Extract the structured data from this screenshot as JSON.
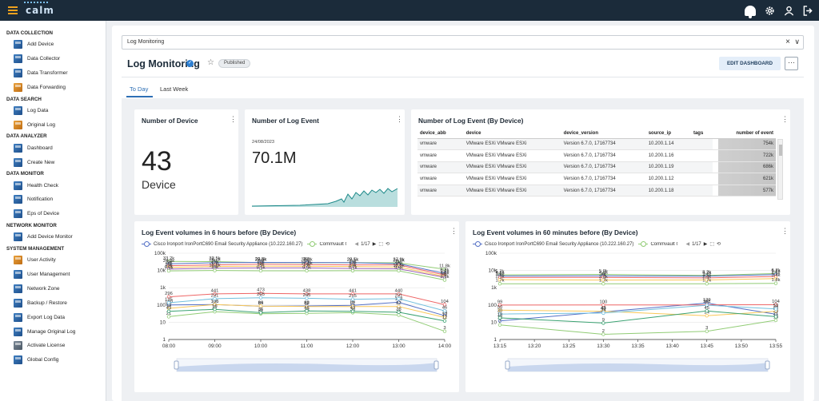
{
  "app": {
    "logo": "calm"
  },
  "sidebar": {
    "sections": [
      {
        "title": "DATA COLLECTION",
        "items": [
          {
            "label": "Add Device",
            "icon": "add-device-icon",
            "c": "b"
          },
          {
            "label": "Data Collector",
            "icon": "data-collector-icon",
            "c": "b"
          },
          {
            "label": "Data Transformer",
            "icon": "data-transformer-icon",
            "c": "b"
          },
          {
            "label": "Data Forwarding",
            "icon": "data-forwarding-icon",
            "c": "o"
          }
        ]
      },
      {
        "title": "DATA SEARCH",
        "items": [
          {
            "label": "Log Data",
            "icon": "log-data-icon",
            "c": "b"
          },
          {
            "label": "Original Log",
            "icon": "original-log-icon",
            "c": "o"
          }
        ]
      },
      {
        "title": "DATA ANALYZER",
        "items": [
          {
            "label": "Dashboard",
            "icon": "dashboard-icon",
            "c": "b"
          },
          {
            "label": "Create New",
            "icon": "create-new-icon",
            "c": "b"
          }
        ]
      },
      {
        "title": "DATA MONITOR",
        "items": [
          {
            "label": "Health Check",
            "icon": "health-check-icon",
            "c": "b"
          },
          {
            "label": "Notification",
            "icon": "notification-icon",
            "c": "b"
          },
          {
            "label": "Eps of Device",
            "icon": "eps-device-icon",
            "c": "b"
          }
        ]
      },
      {
        "title": "NETWORK MONITOR",
        "items": [
          {
            "label": "Add Device Monitor",
            "icon": "add-device-monitor-icon",
            "c": "b"
          }
        ]
      },
      {
        "title": "SYSTEM MANAGEMENT",
        "items": [
          {
            "label": "User Activity",
            "icon": "user-activity-icon",
            "c": "o"
          },
          {
            "label": "User Management",
            "icon": "user-management-icon",
            "c": "b"
          },
          {
            "label": "Network Zone",
            "icon": "network-zone-icon",
            "c": "b"
          },
          {
            "label": "Backup / Restore",
            "icon": "backup-restore-icon",
            "c": "b"
          },
          {
            "label": "Export Log Data",
            "icon": "export-log-icon",
            "c": "b"
          },
          {
            "label": "Manage Original Log",
            "icon": "manage-original-log-icon",
            "c": "b"
          },
          {
            "label": "Activate License",
            "icon": "activate-license-icon",
            "c": "g"
          },
          {
            "label": "Global Config",
            "icon": "global-config-icon",
            "c": "b"
          }
        ]
      }
    ]
  },
  "search": {
    "value": "Log Monitoring",
    "clear": "×",
    "toggle": "∨"
  },
  "header": {
    "title": "Log Monitoring",
    "badge": "Published",
    "edit": "EDIT DASHBOARD",
    "more": "···"
  },
  "tabs": [
    {
      "label": "To Day",
      "active": true
    },
    {
      "label": "Last Week",
      "active": false
    }
  ],
  "cards": {
    "devices": {
      "title": "Number of Device",
      "value": "43",
      "unit": "Device"
    },
    "events": {
      "title": "Number of Log Event",
      "date": "24/08/2023",
      "value": "70.1M"
    },
    "table": {
      "title": "Number of Log Event (By Device)",
      "columns": [
        "device_abb",
        "device",
        "device_version",
        "source_ip",
        "tags",
        "number of event"
      ],
      "rows": [
        [
          "vmware",
          "VMware ESXi VMware ESXi",
          "Version 6.7.0, 17167734",
          "10.200.1.14",
          "",
          "754k"
        ],
        [
          "vmware",
          "VMware ESXi VMware ESXi",
          "Version 6.7.0, 17167734",
          "10.200.1.16",
          "",
          "722k"
        ],
        [
          "vmware",
          "VMware ESXi VMware ESXi",
          "Version 6.7.0, 17167734",
          "10.200.1.19",
          "",
          "686k"
        ],
        [
          "vmware",
          "VMware ESXi VMware ESXi",
          "Version 6.7.0, 17167734",
          "10.200.1.12",
          "",
          "621k"
        ],
        [
          "vmware",
          "VMware ESXi VMware ESXi",
          "Version 6.7.0, 17167734",
          "10.200.1.18",
          "",
          "577k"
        ]
      ]
    }
  },
  "colors": {
    "blue": "#5470c6",
    "green": "#91cc75",
    "orange": "#fac858",
    "red": "#ee6666",
    "teal": "#1f8a8a"
  },
  "chart_data": [
    {
      "type": "line",
      "title": "Log Event volumes in 6 hours before (By Device)",
      "legend": [
        "Cisco Ironport IronPortC690 Email Security Appliance (10.222.160.27)",
        "Commvault Commvault"
      ],
      "pager": "1/17",
      "scale": "log",
      "ylim": [
        1,
        100000
      ],
      "yticks": [
        "1",
        "10",
        "100",
        "1k",
        "10k",
        "100k"
      ],
      "x": [
        "08:00",
        "09:00",
        "10:00",
        "11:00",
        "12:00",
        "13:00",
        "14:00"
      ],
      "series": [
        {
          "color": "#5470c6",
          "values": [
            100,
            105,
            84,
            88,
            96,
            143,
            24
          ]
        },
        {
          "color": "#91cc75",
          "values": [
            21,
            41,
            31,
            33,
            36,
            26,
            3
          ]
        },
        {
          "color": "#ee6666",
          "values": [
            296,
            441,
            473,
            438,
            441,
            440,
            104
          ]
        },
        {
          "color": "#fac858",
          "values": [
            64,
            106,
            86,
            82,
            81,
            82,
            19
          ]
        },
        {
          "color": "#73c0de",
          "values": [
            135,
            231,
            265,
            245,
            215,
            231,
            46
          ]
        },
        {
          "color": "#3ba272",
          "values": [
            43,
            56,
            36,
            45,
            43,
            38,
            12
          ]
        },
        {
          "color": "#91cc75",
          "values": [
            33200,
            32500,
            28400,
            28200,
            28500,
            27900,
            11800
          ]
        },
        {
          "color": "#5470c6",
          "values": [
            24300,
            28200,
            29500,
            29000,
            28100,
            24700,
            6840
          ]
        },
        {
          "color": "#ee6666",
          "values": [
            19000,
            21000,
            23000,
            22000,
            21000,
            21000,
            5500
          ]
        },
        {
          "color": "#fac858",
          "values": [
            15000,
            17000,
            18000,
            17500,
            17000,
            16000,
            4500
          ]
        },
        {
          "color": "#9a60b4",
          "values": [
            12000,
            13500,
            14000,
            14000,
            13000,
            12500,
            4000
          ]
        },
        {
          "color": "#91cc75",
          "values": [
            9500,
            10000,
            9600,
            9600,
            9700,
            9600,
            2800
          ]
        }
      ]
    },
    {
      "type": "line",
      "title": "Log Event volumes in 60 minutes before (By Device)",
      "legend": [
        "Cisco Ironport IronPortC690 Email Security Appliance (10.222.160.27)",
        "Commvault Commvault"
      ],
      "pager": "1/17",
      "scale": "log",
      "ylim": [
        1,
        100000
      ],
      "yticks": [
        "1",
        "10",
        "100",
        "1k",
        "10k",
        "100k"
      ],
      "x": [
        "13:15",
        "13:20",
        "13:25",
        "13:30",
        "13:35",
        "13:40",
        "13:45",
        "13:50",
        "13:55"
      ],
      "series": [
        {
          "color": "#5470c6",
          "values": [
            12,
            null,
            null,
            40,
            null,
            null,
            129,
            null,
            29
          ]
        },
        {
          "color": "#91cc75",
          "values": [
            7,
            null,
            null,
            2,
            null,
            null,
            3,
            null,
            13
          ]
        },
        {
          "color": "#ee6666",
          "values": [
            99,
            null,
            null,
            100,
            null,
            null,
            101,
            null,
            104
          ]
        },
        {
          "color": "#fac858",
          "values": [
            50,
            null,
            null,
            43,
            null,
            null,
            24,
            null,
            43
          ]
        },
        {
          "color": "#73c0de",
          "values": [
            30,
            null,
            null,
            34,
            null,
            null,
            97,
            null,
            59
          ]
        },
        {
          "color": "#3ba272",
          "values": [
            18,
            null,
            null,
            9,
            null,
            null,
            45,
            null,
            21
          ]
        },
        {
          "color": "#91cc75",
          "values": [
            5650,
            null,
            null,
            5910,
            null,
            null,
            5180,
            null,
            6680
          ]
        },
        {
          "color": "#5470c6",
          "values": [
            4800,
            null,
            null,
            4900,
            null,
            null,
            4700,
            null,
            5800
          ]
        },
        {
          "color": "#ee6666",
          "values": [
            3900,
            null,
            null,
            3950,
            null,
            null,
            3700,
            null,
            4500
          ]
        },
        {
          "color": "#fac858",
          "values": [
            2920,
            null,
            null,
            2790,
            null,
            null,
            2800,
            null,
            3400
          ]
        },
        {
          "color": "#91cc75",
          "values": [
            1700,
            null,
            null,
            1700,
            null,
            null,
            1700,
            null,
            1800
          ]
        }
      ]
    }
  ]
}
